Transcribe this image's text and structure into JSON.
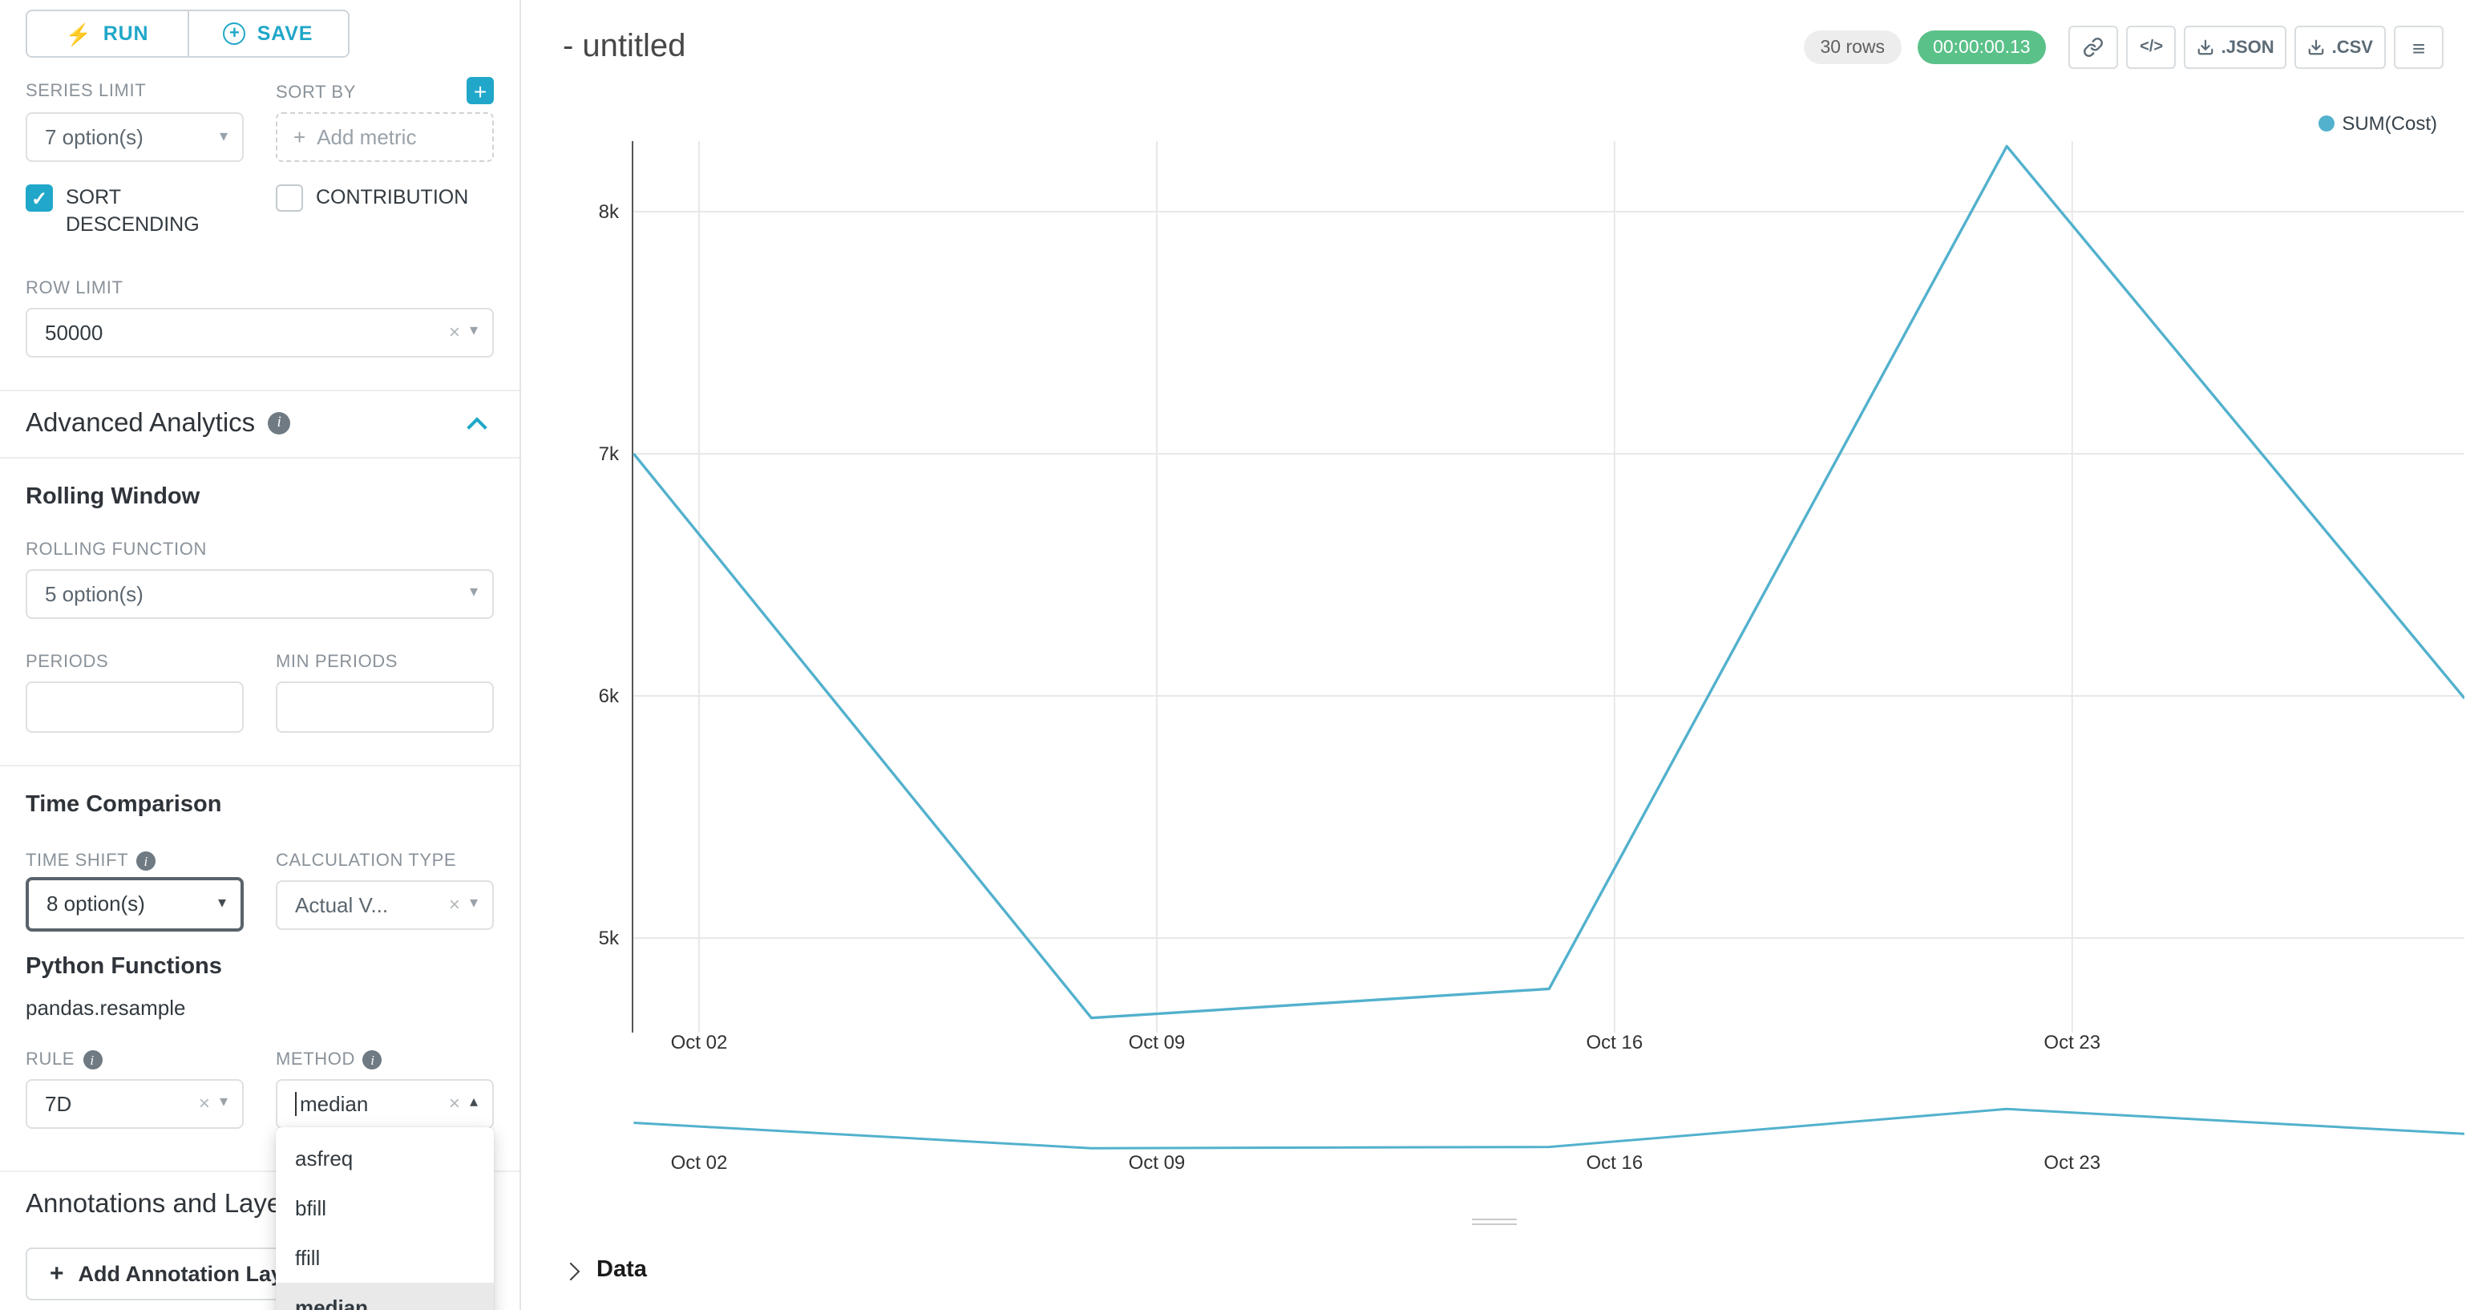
{
  "toolbar": {
    "run_label": "RUN",
    "save_label": "SAVE"
  },
  "query_panel": {
    "series_limit": {
      "label": "SERIES LIMIT",
      "value": "7 option(s)"
    },
    "sort_by": {
      "label": "SORT BY",
      "placeholder": "Add metric"
    },
    "sort_descending": {
      "label": "SORT DESCENDING",
      "checked": true
    },
    "contribution": {
      "label": "CONTRIBUTION",
      "checked": false
    },
    "row_limit": {
      "label": "ROW LIMIT",
      "value": "50000"
    }
  },
  "advanced_analytics": {
    "title": "Advanced Analytics",
    "rolling_window": {
      "title": "Rolling Window",
      "rolling_function": {
        "label": "ROLLING FUNCTION",
        "value": "5 option(s)"
      },
      "periods": {
        "label": "PERIODS",
        "value": ""
      },
      "min_periods": {
        "label": "MIN PERIODS",
        "value": ""
      }
    },
    "time_comparison": {
      "title": "Time Comparison",
      "time_shift": {
        "label": "TIME SHIFT",
        "value": "8 option(s)"
      },
      "calculation_type": {
        "label": "CALCULATION TYPE",
        "value": "Actual V..."
      }
    },
    "python_functions": {
      "title": "Python Functions",
      "subtitle": "pandas.resample",
      "rule": {
        "label": "RULE",
        "value": "7D"
      },
      "method": {
        "label": "METHOD",
        "value": "median",
        "options": [
          "asfreq",
          "bfill",
          "ffill",
          "median"
        ],
        "selected": "median"
      }
    }
  },
  "annotations": {
    "title": "Annotations and Layers",
    "add_button": "Add Annotation Layer"
  },
  "header": {
    "title": "- untitled",
    "rows_badge": "30 rows",
    "timer": "00:00:00.13",
    "json_label": ".JSON",
    "csv_label": ".CSV"
  },
  "results": {
    "data_label": "Data"
  },
  "icons": {
    "run": "⚡",
    "save_plus": "+",
    "add": "+",
    "clear": "×",
    "caret_down": "▾",
    "caret_up": "▴",
    "menu": "≡",
    "check": "✓",
    "info": "i",
    "code": "</>"
  },
  "colors": {
    "accent": "#20a7c9",
    "success_badge": "#5ac189",
    "line": "#52b1cd"
  },
  "chart_data": {
    "type": "line",
    "title": "",
    "legend": "SUM(Cost)",
    "legend_position": "top-right",
    "grid": true,
    "x_ticks": {
      "days": [
        1,
        8,
        15,
        22
      ],
      "labels": [
        "Oct 02",
        "Oct 09",
        "Oct 16",
        "Oct 23"
      ]
    },
    "y_ticks": {
      "values": [
        8000,
        7000,
        6000,
        5000
      ],
      "labels": [
        "8k",
        "7k",
        "6k",
        "5k"
      ]
    },
    "ylim": [
      4550,
      8450
    ],
    "series": [
      {
        "name": "SUM(Cost)",
        "x_days": [
          0,
          7,
          14,
          21,
          28
        ],
        "values": [
          7000,
          4670,
          4790,
          8270,
          5990
        ]
      }
    ],
    "line_color": "#52b1cd"
  }
}
